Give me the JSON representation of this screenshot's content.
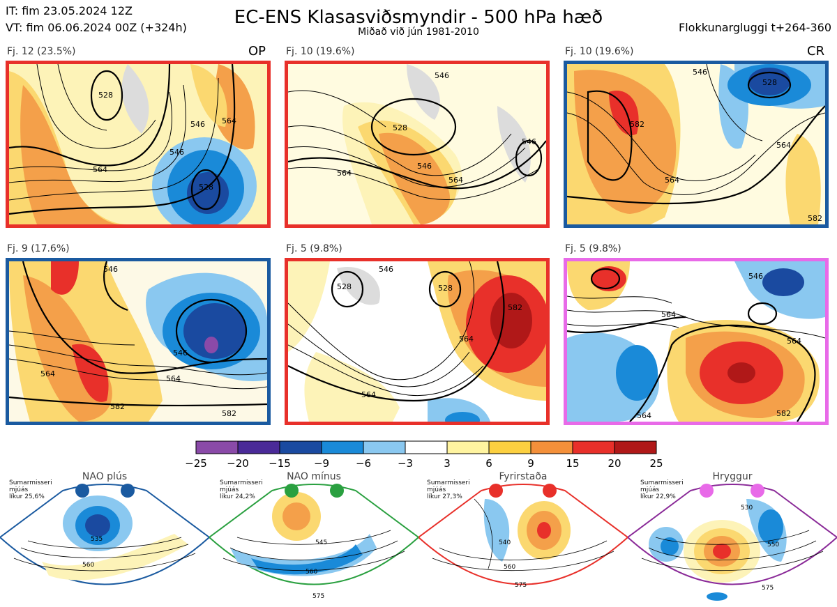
{
  "header": {
    "it": "IT: fim 23.05.2024 12Z",
    "vt": "VT: fim 06.06.2024 00Z  (+324h)",
    "title": "EC-ENS Klasasviðsmyndir - 500 hPa hæð",
    "subtitle": "Miðað við jún 1981-2010",
    "window": "Flokkunargluggi t+264-360"
  },
  "panels": [
    {
      "label": "Fj. 12 (23.5%)",
      "tag": "OP",
      "border": "#e8302a",
      "contours": [
        "528",
        "546",
        "564",
        "546",
        "528",
        "564"
      ]
    },
    {
      "label": "Fj. 10 (19.6%)",
      "tag": "",
      "border": "#e8302a",
      "contours": [
        "528",
        "546",
        "564",
        "546",
        "564",
        "546"
      ]
    },
    {
      "label": "Fj. 10 (19.6%)",
      "tag": "CR",
      "border": "#1a5aa0",
      "contours": [
        "546",
        "528",
        "582",
        "564",
        "564",
        "582"
      ]
    },
    {
      "label": "Fj. 9 (17.6%)",
      "tag": "",
      "border": "#1a5aa0",
      "contours": [
        "546",
        "546",
        "564",
        "564",
        "582",
        "582"
      ]
    },
    {
      "label": "Fj. 5 (9.8%)",
      "tag": "",
      "border": "#e8302a",
      "contours": [
        "528",
        "528",
        "546",
        "564",
        "564",
        "582"
      ]
    },
    {
      "label": "Fj. 5 (9.8%)",
      "tag": "",
      "border": "#e86ae8",
      "contours": [
        "546",
        "564",
        "564",
        "564",
        "582"
      ]
    }
  ],
  "colorbar": {
    "ticks": [
      "−25",
      "−20",
      "−15",
      "−9",
      "−6",
      "−3",
      "3",
      "6",
      "9",
      "15",
      "20",
      "25"
    ],
    "colors": [
      "#8a4aa8",
      "#4a2a98",
      "#1a4aa0",
      "#1a8ad8",
      "#8ac8f0",
      "#ffffff",
      "#fff4a0",
      "#fcd040",
      "#f4903a",
      "#e8302a",
      "#b01818"
    ]
  },
  "regimes": [
    {
      "name": "NAO plús",
      "season": "Sumarmisseri",
      "smooth": "mjúás",
      "prob": "líkur 25,6%",
      "color": "#1a5aa0",
      "contours": [
        "535",
        "560"
      ]
    },
    {
      "name": "NAO mínus",
      "season": "Sumarmisseri",
      "smooth": "mjúás",
      "prob": "líkur 24,2%",
      "color": "#2aa040",
      "contours": [
        "545",
        "560",
        "575"
      ]
    },
    {
      "name": "Fyrirstaða",
      "season": "Sumarmisseri",
      "smooth": "mjúás",
      "prob": "líkur 27,3%",
      "color": "#e8302a",
      "contours": [
        "540",
        "560",
        "575"
      ]
    },
    {
      "name": "Hryggur",
      "season": "Sumarmisseri",
      "smooth": "mjúás",
      "prob": "líkur 22,9%",
      "color": "#e86ae8",
      "contours": [
        "530",
        "550",
        "575"
      ]
    }
  ]
}
